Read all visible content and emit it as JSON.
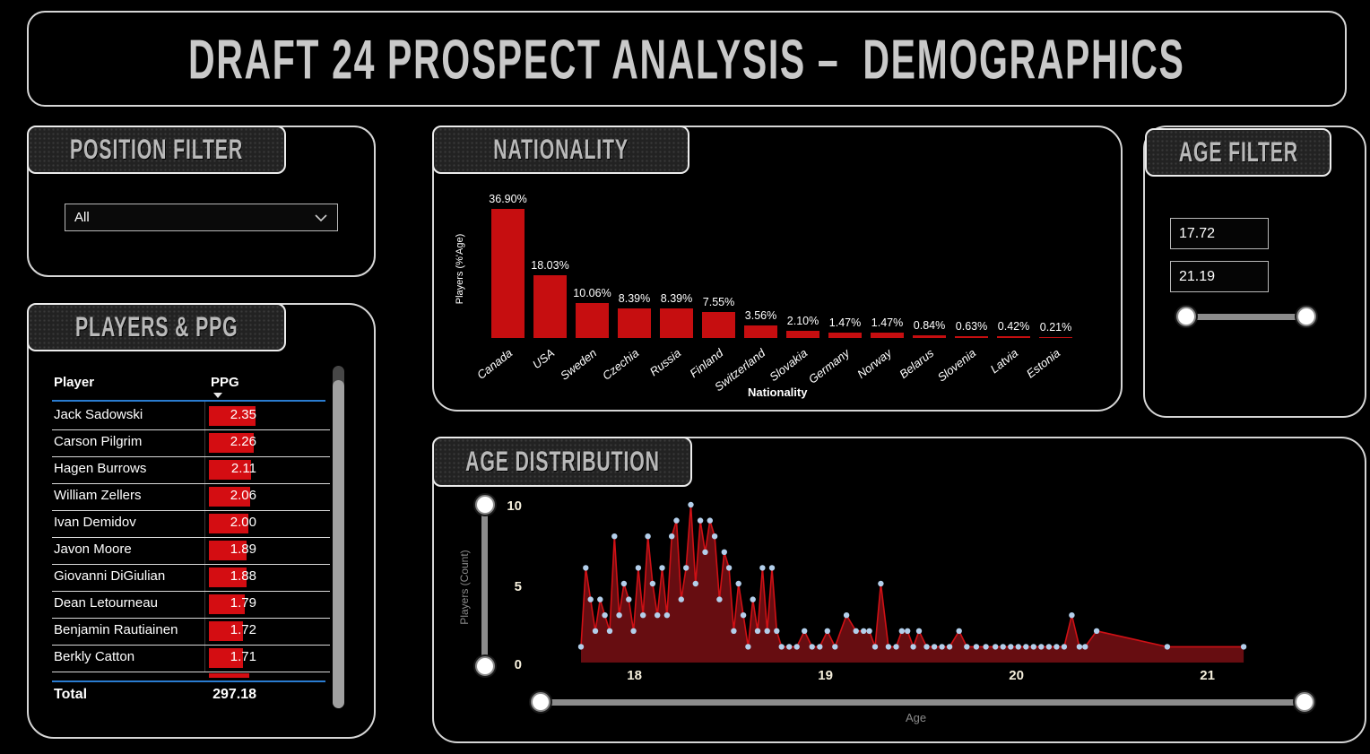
{
  "title": "DRAFT 24 PROSPECT ANALYSIS –  DEMOGRAPHICS",
  "colors": {
    "bar_red": "#c60e10",
    "table_bar_red": "#d40d12",
    "area_fill": "#670d11",
    "area_line": "#cf1015",
    "marker_blue": "#b3cfeb",
    "sort_underline_blue": "#2a7cd0",
    "panel_border": "#d6d6d6",
    "badge_text": "#b9b9b9",
    "tick_text": "#f5efdc"
  },
  "position_filter": {
    "header": "POSITION FILTER",
    "dropdown_value": "All",
    "dropdown_icon": "chevron-down-icon"
  },
  "players_table": {
    "header": "PLAYERS & PPG",
    "columns": [
      "Player",
      "PPG"
    ],
    "sort": "PPG descending",
    "rows": [
      {
        "player": "Jack Sadowski",
        "ppg": 2.35
      },
      {
        "player": "Carson Pilgrim",
        "ppg": 2.26
      },
      {
        "player": "Hagen Burrows",
        "ppg": 2.11
      },
      {
        "player": "William Zellers",
        "ppg": 2.06
      },
      {
        "player": "Ivan Demidov",
        "ppg": 2.0
      },
      {
        "player": "Javon Moore",
        "ppg": 1.89
      },
      {
        "player": "Giovanni DiGiulian",
        "ppg": 1.88
      },
      {
        "player": "Dean Letourneau",
        "ppg": 1.79
      },
      {
        "player": "Benjamin Rautiainen",
        "ppg": 1.72
      },
      {
        "player": "Berkly Catton",
        "ppg": 1.71
      }
    ],
    "partial_row_visible": true,
    "total_label": "Total",
    "total_value": "297.18",
    "max_ppg": 2.35
  },
  "nationality_panel": {
    "header": "NATIONALITY"
  },
  "age_filter": {
    "header": "AGE FILTER",
    "min_value": "17.72",
    "max_value": "21.19"
  },
  "age_distribution_panel": {
    "header": "AGE DISTRIBUTION"
  },
  "chart_data": [
    {
      "type": "bar",
      "title": "Nationality",
      "categories": [
        "Canada",
        "USA",
        "Sweden",
        "Czechia",
        "Russia",
        "Finland",
        "Switzerland",
        "Slovakia",
        "Germany",
        "Norway",
        "Belarus",
        "Slovenia",
        "Latvia",
        "Estonia"
      ],
      "values": [
        36.9,
        18.03,
        10.06,
        8.39,
        8.39,
        7.55,
        3.56,
        2.1,
        1.47,
        1.47,
        0.84,
        0.63,
        0.42,
        0.21
      ],
      "value_labels": [
        "36.90%",
        "18.03%",
        "10.06%",
        "8.39%",
        "8.39%",
        "7.55%",
        "3.56%",
        "2.10%",
        "1.47%",
        "1.47%",
        "0.84%",
        "0.63%",
        "0.42%",
        "0.21%"
      ],
      "xlabel": "Nationality",
      "ylabel": "Players (%'Age)",
      "ylim": [
        0,
        40
      ],
      "grid": false,
      "legend": "none"
    },
    {
      "type": "area",
      "title": "Age Distribution",
      "xlabel": "Age",
      "ylabel": "Players (Count)",
      "x_ticks": [
        18,
        19,
        20,
        21
      ],
      "y_ticks": [
        0,
        5,
        10
      ],
      "xlim": [
        17.72,
        21.19
      ],
      "ylim": [
        0,
        10
      ],
      "grid": false,
      "legend": "none",
      "x": [
        17.72,
        17.745,
        17.77,
        17.795,
        17.82,
        17.845,
        17.87,
        17.895,
        17.92,
        17.945,
        17.97,
        17.995,
        18.02,
        18.045,
        18.07,
        18.095,
        18.12,
        18.145,
        18.17,
        18.195,
        18.22,
        18.245,
        18.27,
        18.295,
        18.32,
        18.345,
        18.37,
        18.395,
        18.42,
        18.445,
        18.47,
        18.495,
        18.52,
        18.545,
        18.57,
        18.595,
        18.62,
        18.645,
        18.67,
        18.695,
        18.72,
        18.745,
        18.77,
        18.81,
        18.85,
        18.89,
        18.93,
        18.97,
        19.01,
        19.05,
        19.11,
        19.16,
        19.2,
        19.23,
        19.26,
        19.29,
        19.33,
        19.37,
        19.4,
        19.43,
        19.46,
        19.49,
        19.53,
        19.57,
        19.61,
        19.65,
        19.7,
        19.74,
        19.79,
        19.84,
        19.89,
        19.93,
        19.97,
        20.01,
        20.05,
        20.09,
        20.13,
        20.17,
        20.21,
        20.25,
        20.29,
        20.33,
        20.36,
        20.42,
        20.79,
        21.19
      ],
      "y": [
        1,
        6,
        4,
        2,
        4,
        3,
        2,
        8,
        3,
        5,
        4,
        2,
        6,
        3,
        8,
        5,
        3,
        6,
        3,
        8,
        9,
        4,
        6,
        10,
        5,
        9,
        7,
        9,
        8,
        4,
        7,
        6,
        2,
        5,
        3,
        1,
        4,
        2,
        6,
        2,
        6,
        2,
        1,
        1,
        1,
        2,
        1,
        1,
        2,
        1,
        3,
        2,
        2,
        2,
        1,
        5,
        1,
        1,
        2,
        2,
        1,
        2,
        1,
        1,
        1,
        1,
        2,
        1,
        1,
        1,
        1,
        1,
        1,
        1,
        1,
        1,
        1,
        1,
        1,
        1,
        3,
        1,
        1,
        2,
        1,
        1
      ]
    }
  ]
}
